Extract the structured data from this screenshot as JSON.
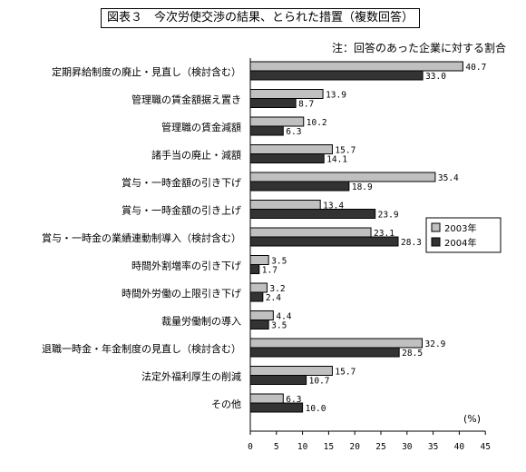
{
  "chart_data": {
    "type": "bar",
    "orientation": "horizontal",
    "title": "図表３　今次労使交渉の結果、とられた措置（複数回答）",
    "note": "注：回答のあった企業に対する割合",
    "unit_label": "(%)",
    "xlim": [
      0,
      45
    ],
    "xticks": [
      0,
      5,
      10,
      15,
      20,
      25,
      30,
      35,
      40,
      45
    ],
    "grid": false,
    "legend_position": "right",
    "categories": [
      "定期昇給制度の廃止・見直し（検討含む）",
      "管理職の賃金額据え置き",
      "管理職の賃金減額",
      "諸手当の廃止・減額",
      "賞与・一時金額の引き下げ",
      "賞与・一時金額の引き上げ",
      "賞与・一時金の業績連動制導入（検討含む）",
      "時間外割増率の引き下げ",
      "時間外労働の上限引き下げ",
      "裁量労働制の導入",
      "退職一時金・年金制度の見直し（検討含む）",
      "法定外福利厚生の削減",
      "その他"
    ],
    "series": [
      {
        "name": "2003年",
        "color": "#c0c0c0",
        "values": [
          40.7,
          13.9,
          10.2,
          15.7,
          35.4,
          13.4,
          23.1,
          3.5,
          3.2,
          4.4,
          32.9,
          15.7,
          6.3
        ],
        "labels": [
          "40.7",
          "13.9",
          "10.2",
          "15.7",
          "35.4",
          "13.4",
          "23.1",
          "3.5",
          "3.2",
          "4.4",
          "32.9",
          "15.7",
          "6.3"
        ]
      },
      {
        "name": "2004年",
        "color": "#333333",
        "values": [
          33.0,
          8.7,
          6.3,
          14.1,
          18.9,
          23.9,
          28.3,
          1.7,
          2.4,
          3.5,
          28.5,
          10.7,
          10.0
        ],
        "labels": [
          "33.0",
          "8.7",
          "6.3",
          "14.1",
          "18.9",
          "23.9",
          "28.3",
          "1.7",
          "2.4",
          "3.5",
          "28.5",
          "10.7",
          "10.0"
        ]
      }
    ]
  }
}
